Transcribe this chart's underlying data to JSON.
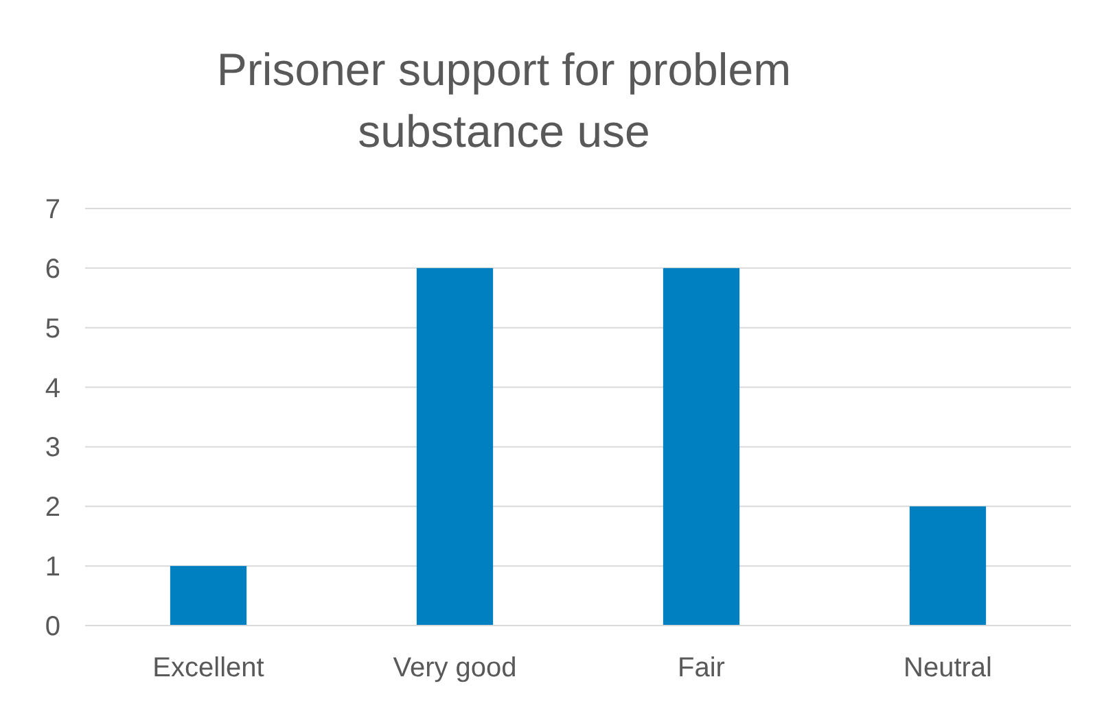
{
  "chart_data": {
    "type": "bar",
    "title": "Prisoner support for problem substance use",
    "categories": [
      "Excellent",
      "Very good",
      "Fair",
      "Neutral"
    ],
    "values": [
      1,
      6,
      6,
      2
    ],
    "color": "#0080c0",
    "ylim": [
      0,
      7
    ],
    "yticks": [
      0,
      1,
      2,
      3,
      4,
      5,
      6,
      7
    ],
    "grid": "y"
  }
}
